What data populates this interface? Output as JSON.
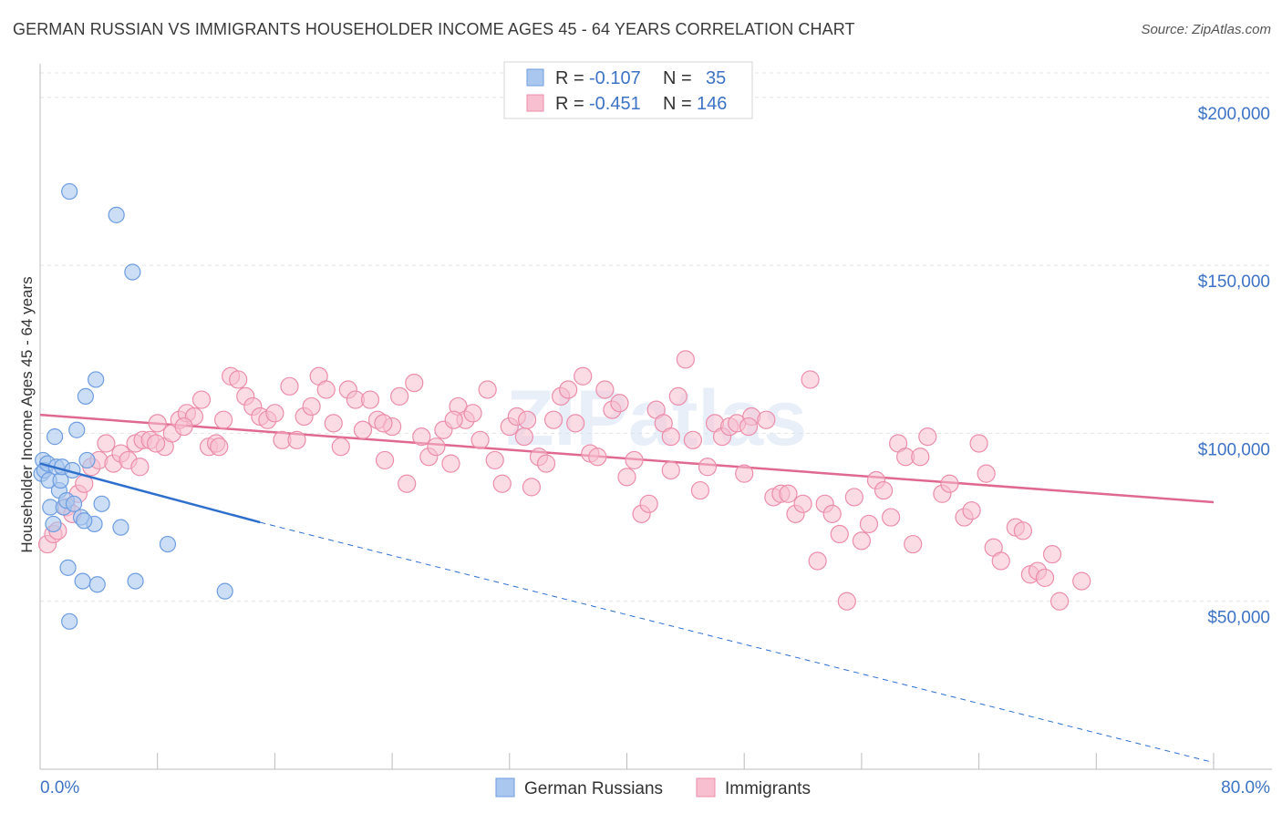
{
  "title": "GERMAN RUSSIAN VS IMMIGRANTS HOUSEHOLDER INCOME AGES 45 - 64 YEARS CORRELATION CHART",
  "source": "Source: ZipAtlas.com",
  "watermark": "ZIPatlas",
  "colors": {
    "blue_fill": "#aac8ef",
    "blue_stroke": "#6d9de0",
    "blue_line": "#2e6fcc",
    "pink_fill": "#f7bfd0",
    "pink_stroke": "#ec8dab",
    "pink_line": "#e06990",
    "grid": "#e3e3e3",
    "label": "#3d73c4"
  },
  "legend": {
    "rows": [
      {
        "r_label": "R =",
        "r_value": "-0.107",
        "n_label": "N =",
        "n_value": "35"
      },
      {
        "r_label": "R =",
        "r_value": "-0.451",
        "n_label": "N =",
        "n_value": "146"
      }
    ]
  },
  "bottom_legend": [
    "German Russians",
    "Immigrants"
  ],
  "chart_data": {
    "type": "scatter",
    "title": "GERMAN RUSSIAN VS IMMIGRANTS HOUSEHOLDER INCOME AGES 45 - 64 YEARS CORRELATION CHART",
    "xlabel": "",
    "ylabel": "Householder Income Ages 45 - 64 years",
    "xlim": [
      0,
      80
    ],
    "ylim": [
      0,
      210000
    ],
    "x_tick_labels": [
      "0.0%",
      "80.0%"
    ],
    "y_ticks": [
      50000,
      100000,
      150000,
      200000
    ],
    "y_tick_labels": [
      "$50,000",
      "$100,000",
      "$150,000",
      "$200,000"
    ],
    "grid": true,
    "legend_position": "top-center",
    "series": [
      {
        "name": "German Russians",
        "r": -0.107,
        "n": 35,
        "trend": {
          "x0": 0,
          "y0": 91000,
          "x1": 15,
          "y1": 73500,
          "dashed_to_x": 80,
          "dashed_to_y": 2000
        },
        "points": [
          [
            0.1,
            88000
          ],
          [
            0.2,
            92000
          ],
          [
            0.3,
            89000
          ],
          [
            0.5,
            91000
          ],
          [
            0.6,
            86000
          ],
          [
            0.7,
            78000
          ],
          [
            0.9,
            73000
          ],
          [
            1.0,
            99000
          ],
          [
            1.1,
            90000
          ],
          [
            1.3,
            83000
          ],
          [
            1.4,
            86000
          ],
          [
            1.5,
            90000
          ],
          [
            1.6,
            78000
          ],
          [
            1.8,
            80000
          ],
          [
            1.9,
            60000
          ],
          [
            2.0,
            172000
          ],
          [
            2.2,
            89000
          ],
          [
            2.3,
            79000
          ],
          [
            2.5,
            101000
          ],
          [
            2.8,
            75000
          ],
          [
            2.9,
            56000
          ],
          [
            3.1,
            111000
          ],
          [
            3.2,
            92000
          ],
          [
            3.7,
            73000
          ],
          [
            3.9,
            55000
          ],
          [
            4.2,
            79000
          ],
          [
            5.2,
            165000
          ],
          [
            5.5,
            72000
          ],
          [
            6.3,
            148000
          ],
          [
            6.5,
            56000
          ],
          [
            8.7,
            67000
          ],
          [
            12.6,
            53000
          ],
          [
            3.8,
            116000
          ],
          [
            3.0,
            74000
          ],
          [
            2.0,
            44000
          ]
        ]
      },
      {
        "name": "Immigrants",
        "r": -0.451,
        "n": 146,
        "trend": {
          "x0": 0,
          "y0": 105500,
          "x1": 80,
          "y1": 79500
        },
        "points": [
          [
            0.5,
            67000
          ],
          [
            0.9,
            70000
          ],
          [
            1.2,
            71000
          ],
          [
            1.8,
            78000
          ],
          [
            2.2,
            76000
          ],
          [
            2.6,
            82000
          ],
          [
            3.0,
            85000
          ],
          [
            3.5,
            90000
          ],
          [
            4.0,
            92000
          ],
          [
            4.5,
            97000
          ],
          [
            5.0,
            91000
          ],
          [
            5.5,
            94000
          ],
          [
            6.0,
            92000
          ],
          [
            6.5,
            97000
          ],
          [
            7.0,
            98000
          ],
          [
            7.5,
            98000
          ],
          [
            8.0,
            103000
          ],
          [
            8.5,
            96000
          ],
          [
            9.0,
            100000
          ],
          [
            9.5,
            104000
          ],
          [
            10.0,
            106000
          ],
          [
            10.5,
            105000
          ],
          [
            11.0,
            110000
          ],
          [
            11.5,
            96000
          ],
          [
            12.0,
            97000
          ],
          [
            12.5,
            104000
          ],
          [
            13.0,
            117000
          ],
          [
            13.5,
            116000
          ],
          [
            14.0,
            111000
          ],
          [
            14.5,
            108000
          ],
          [
            15.0,
            105000
          ],
          [
            15.5,
            104000
          ],
          [
            16.0,
            106000
          ],
          [
            16.5,
            98000
          ],
          [
            17.0,
            114000
          ],
          [
            17.5,
            98000
          ],
          [
            18.0,
            105000
          ],
          [
            18.5,
            108000
          ],
          [
            19.0,
            117000
          ],
          [
            19.5,
            113000
          ],
          [
            20.0,
            103000
          ],
          [
            20.5,
            96000
          ],
          [
            21.0,
            113000
          ],
          [
            21.5,
            110000
          ],
          [
            22.0,
            101000
          ],
          [
            22.5,
            110000
          ],
          [
            23.0,
            104000
          ],
          [
            23.5,
            92000
          ],
          [
            24.0,
            102000
          ],
          [
            24.5,
            111000
          ],
          [
            25.0,
            85000
          ],
          [
            25.5,
            115000
          ],
          [
            26.0,
            99000
          ],
          [
            26.5,
            93000
          ],
          [
            27.0,
            96000
          ],
          [
            27.5,
            101000
          ],
          [
            28.0,
            91000
          ],
          [
            28.5,
            108000
          ],
          [
            29.0,
            104000
          ],
          [
            29.5,
            106000
          ],
          [
            30.0,
            98000
          ],
          [
            30.5,
            113000
          ],
          [
            31.0,
            92000
          ],
          [
            31.5,
            85000
          ],
          [
            32.0,
            102000
          ],
          [
            32.5,
            105000
          ],
          [
            33.0,
            99000
          ],
          [
            33.5,
            84000
          ],
          [
            34.0,
            93000
          ],
          [
            34.5,
            91000
          ],
          [
            35.0,
            104000
          ],
          [
            35.5,
            111000
          ],
          [
            36.0,
            113000
          ],
          [
            36.5,
            103000
          ],
          [
            37.0,
            117000
          ],
          [
            37.5,
            94000
          ],
          [
            38.0,
            93000
          ],
          [
            38.5,
            113000
          ],
          [
            39.0,
            107000
          ],
          [
            39.5,
            109000
          ],
          [
            40.0,
            87000
          ],
          [
            40.5,
            92000
          ],
          [
            41.0,
            76000
          ],
          [
            41.5,
            79000
          ],
          [
            42.0,
            107000
          ],
          [
            42.5,
            103000
          ],
          [
            43.0,
            99000
          ],
          [
            43.5,
            111000
          ],
          [
            44.0,
            122000
          ],
          [
            44.5,
            98000
          ],
          [
            45.0,
            83000
          ],
          [
            45.5,
            90000
          ],
          [
            46.0,
            103000
          ],
          [
            46.5,
            99000
          ],
          [
            47.0,
            102000
          ],
          [
            47.5,
            103000
          ],
          [
            48.0,
            88000
          ],
          [
            48.5,
            105000
          ],
          [
            49.5,
            104000
          ],
          [
            50.0,
            81000
          ],
          [
            50.5,
            82000
          ],
          [
            51.0,
            82000
          ],
          [
            51.5,
            76000
          ],
          [
            52.0,
            79000
          ],
          [
            52.5,
            116000
          ],
          [
            53.0,
            62000
          ],
          [
            53.5,
            79000
          ],
          [
            54.0,
            76000
          ],
          [
            54.5,
            70000
          ],
          [
            55.0,
            50000
          ],
          [
            55.5,
            81000
          ],
          [
            56.0,
            68000
          ],
          [
            56.5,
            73000
          ],
          [
            57.0,
            86000
          ],
          [
            57.5,
            83000
          ],
          [
            58.0,
            75000
          ],
          [
            58.5,
            97000
          ],
          [
            59.0,
            93000
          ],
          [
            59.5,
            67000
          ],
          [
            60.0,
            93000
          ],
          [
            60.5,
            99000
          ],
          [
            61.5,
            82000
          ],
          [
            62.0,
            85000
          ],
          [
            63.0,
            75000
          ],
          [
            63.5,
            77000
          ],
          [
            64.0,
            97000
          ],
          [
            64.5,
            88000
          ],
          [
            65.0,
            66000
          ],
          [
            65.5,
            62000
          ],
          [
            66.5,
            72000
          ],
          [
            67.0,
            71000
          ],
          [
            67.5,
            58000
          ],
          [
            68.0,
            59000
          ],
          [
            68.5,
            57000
          ],
          [
            69.0,
            64000
          ],
          [
            69.5,
            50000
          ],
          [
            71.0,
            56000
          ],
          [
            28.2,
            104000
          ],
          [
            33.2,
            104000
          ],
          [
            23.4,
            103000
          ],
          [
            43.0,
            89000
          ],
          [
            48.3,
            102000
          ],
          [
            12.2,
            96000
          ],
          [
            6.8,
            90000
          ],
          [
            9.8,
            102000
          ],
          [
            7.9,
            97000
          ]
        ]
      }
    ]
  }
}
